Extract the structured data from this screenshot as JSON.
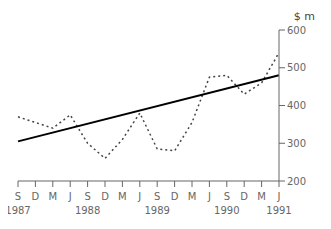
{
  "chart_data": {
    "type": "line",
    "ylabel": "$ m",
    "categories": [
      "S",
      "D",
      "M",
      "J",
      "S",
      "D",
      "M",
      "J",
      "S",
      "D",
      "M",
      "J",
      "S",
      "D",
      "M",
      "J"
    ],
    "annotations": [
      {
        "text": "1987",
        "x": 0
      },
      {
        "text": "1988",
        "x": 4
      },
      {
        "text": "1989",
        "x": 8
      },
      {
        "text": "1990",
        "x": 12
      },
      {
        "text": "1991",
        "x": 15
      }
    ],
    "series": [
      {
        "color": "#444444",
        "line_style": "dotted",
        "values": [
          370,
          355,
          340,
          375,
          300,
          260,
          310,
          380,
          285,
          280,
          355,
          475,
          480,
          430,
          460,
          540
        ]
      },
      {
        "color": "#000000",
        "line_style": "solid",
        "values": [
          305,
          null,
          null,
          null,
          null,
          null,
          null,
          null,
          null,
          null,
          null,
          null,
          null,
          null,
          null,
          480
        ]
      }
    ],
    "ylim": [
      200,
      600
    ],
    "yticks": [
      200,
      300,
      400,
      500,
      600
    ],
    "grid": false
  }
}
